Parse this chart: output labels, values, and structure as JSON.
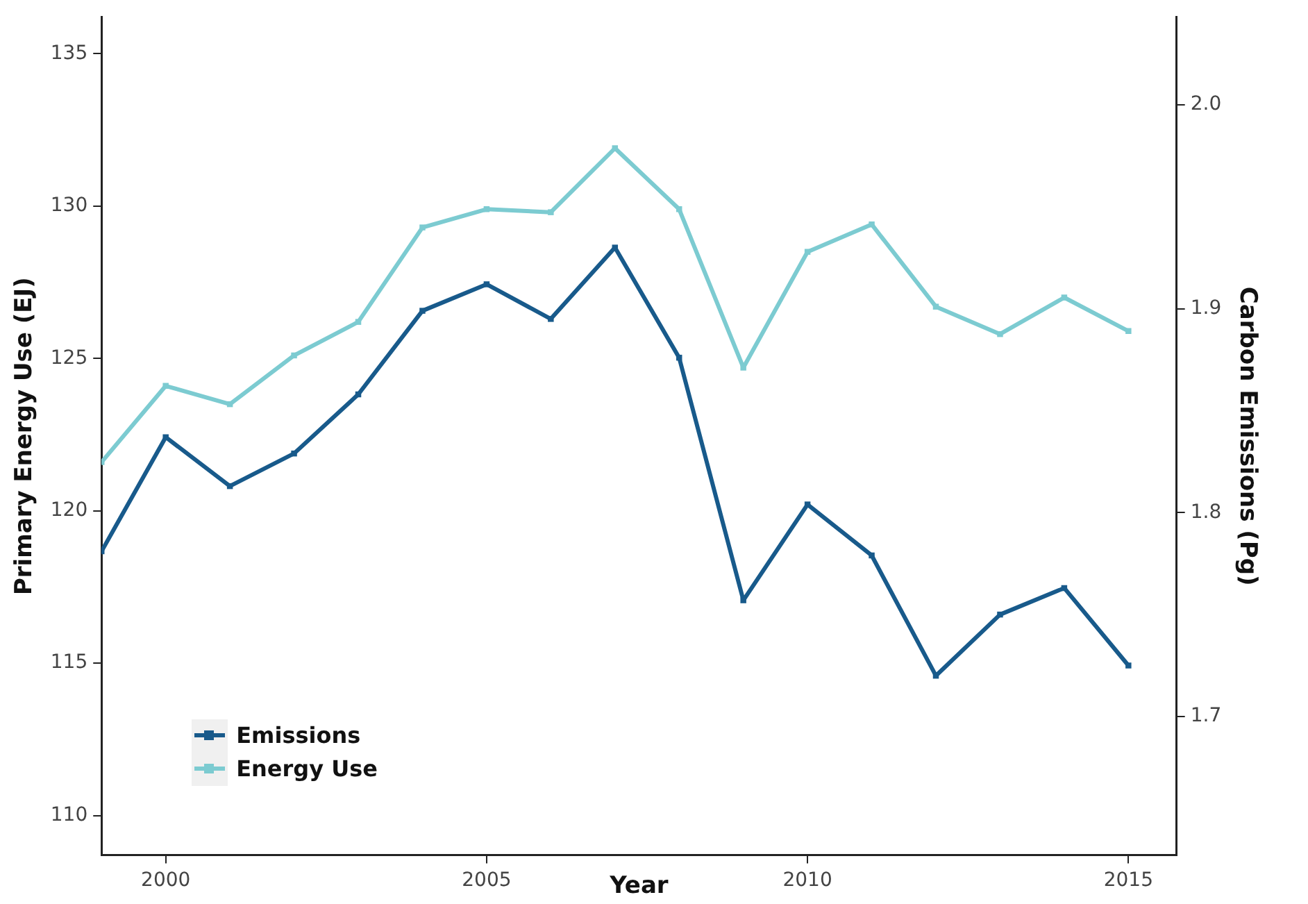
{
  "chart_data": {
    "type": "line",
    "xlabel": "Year",
    "ylabel": "Primary Energy Use (EJ)",
    "y2label": "Carbon Emissions (Pg)",
    "x": [
      1999,
      2000,
      2001,
      2002,
      2003,
      2004,
      2005,
      2006,
      2007,
      2008,
      2009,
      2010,
      2011,
      2012,
      2013,
      2014,
      2015
    ],
    "series": [
      {
        "name": "Emissions",
        "color": "#185a8b",
        "axis": "y2",
        "values": [
          1.781,
          1.837,
          1.813,
          1.829,
          1.858,
          1.899,
          1.912,
          1.895,
          1.93,
          1.876,
          1.757,
          1.804,
          1.779,
          1.72,
          1.75,
          1.763,
          1.725
        ]
      },
      {
        "name": "Energy Use",
        "color": "#7ccbd1",
        "values": [
          121.6,
          124.1,
          123.5,
          125.1,
          126.2,
          129.3,
          129.9,
          129.8,
          131.9,
          129.9,
          124.7,
          128.5,
          129.4,
          126.7,
          125.8,
          127.0,
          125.9
        ]
      }
    ],
    "xlim": [
      1999,
      2015.75
    ],
    "xticks": [
      2000,
      2005,
      2010,
      2015
    ],
    "ylim": [
      108.7,
      136.2
    ],
    "yticks": [
      110,
      115,
      120,
      125,
      130,
      135
    ],
    "y2lim": [
      1.632,
      2.043
    ],
    "y2ticks": [
      {
        "value": 1.7,
        "label": "1.7"
      },
      {
        "value": 1.8,
        "label": "1.8"
      },
      {
        "value": 1.9,
        "label": "1.9"
      },
      {
        "value": 2,
        "label": "2.0"
      }
    ],
    "grid": false,
    "legend": "bottom left",
    "marker": "square",
    "line_style": "solid"
  }
}
